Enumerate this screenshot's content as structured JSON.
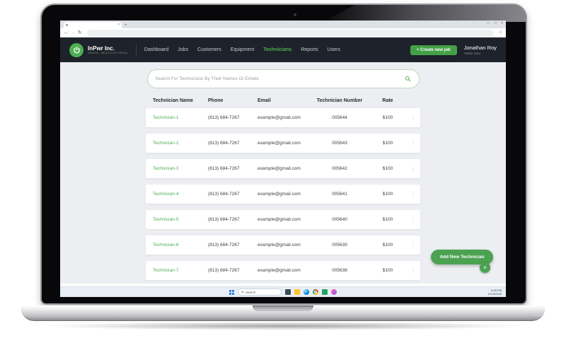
{
  "browser": {
    "tab_close_glyph": "×",
    "new_tab_glyph": "+",
    "controls": {
      "minimize": "—",
      "maximize": "□",
      "close": "×"
    },
    "back_glyph": "←",
    "forward_glyph": "→",
    "refresh_glyph": "↻",
    "bookmark_glyph": "☆"
  },
  "app": {
    "accent_color": "#4CAF50",
    "header_color": "#1E222B",
    "brand": {
      "name": "InPwr Inc.",
      "tagline": "DESIGN - BUILD ELECTRICAL"
    },
    "nav": [
      {
        "label": "Dashboard",
        "active": false
      },
      {
        "label": "Jobs",
        "active": false
      },
      {
        "label": "Customers",
        "active": false
      },
      {
        "label": "Equipment",
        "active": false
      },
      {
        "label": "Technicians",
        "active": true
      },
      {
        "label": "Reports",
        "active": false
      },
      {
        "label": "Users",
        "active": false
      }
    ],
    "create_job_button": "+ Create new job",
    "user": {
      "name": "Jonathan Roy",
      "role": "Admin User"
    },
    "search_placeholder": "Search For Technicians By Their Names Or Emails",
    "table": {
      "columns": [
        "Technician Name",
        "Phone",
        "Email",
        "Technician Number",
        "Rate"
      ],
      "kebab_glyph": "⋮",
      "rows": [
        {
          "name": "Technician-1",
          "phone": "(813) 684-7267",
          "email": "example@gmail.com",
          "number": "005644",
          "rate": "$100"
        },
        {
          "name": "Technician-2",
          "phone": "(813) 684-7267",
          "email": "example@gmail.com",
          "number": "005643",
          "rate": "$100"
        },
        {
          "name": "Technician-3",
          "phone": "(813) 684-7267",
          "email": "example@gmail.com",
          "number": "005642",
          "rate": "$100"
        },
        {
          "name": "Technician-4",
          "phone": "(813) 684-7267",
          "email": "example@gmail.com",
          "number": "005641",
          "rate": "$100"
        },
        {
          "name": "Technician-5",
          "phone": "(813) 684-7267",
          "email": "example@gmail.com",
          "number": "005640",
          "rate": "$100"
        },
        {
          "name": "Technician-6",
          "phone": "(813) 684-7267",
          "email": "example@gmail.com",
          "number": "005639",
          "rate": "$100"
        },
        {
          "name": "Technician-7",
          "phone": "(813) 684-7267",
          "email": "example@gmail.com",
          "number": "005638",
          "rate": "$100"
        }
      ]
    },
    "fab": {
      "label": "Add New Technician",
      "close_glyph": "×"
    }
  },
  "taskbar": {
    "search_label": "Search",
    "clock": {
      "time": "6:48 PM",
      "date": "11/13/2025"
    }
  }
}
